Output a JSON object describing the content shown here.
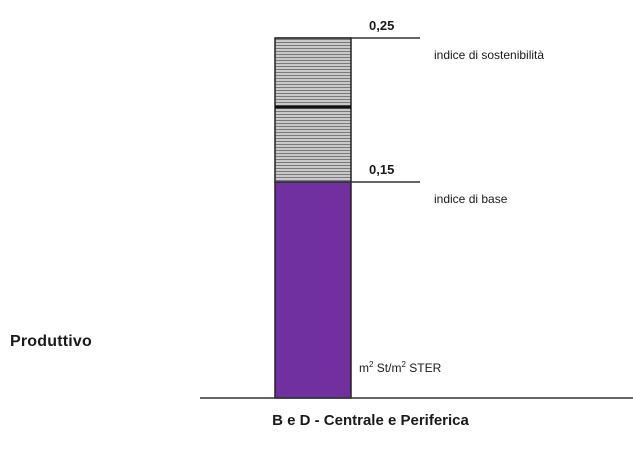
{
  "chart_data": {
    "type": "bar",
    "category": "Produttivo",
    "xlabel": "B e D - Centrale e Periferica",
    "unit_label_prefix": "m",
    "unit_label_mid": " St/m",
    "unit_label_suffix": " STER",
    "unit_sup": "2",
    "ylim": [
      0,
      0.25
    ],
    "segments": [
      {
        "from": 0,
        "to": 0.15,
        "color": "#7030a0",
        "pattern": "solid"
      },
      {
        "from": 0.15,
        "to": 0.25,
        "color": "#b8b8b8",
        "pattern": "horizontal-lines"
      }
    ],
    "thresholds": [
      {
        "value": 0.25,
        "value_label": "0,25",
        "name": "indice di sostenibilità"
      },
      {
        "value": 0.15,
        "value_label": "0,15",
        "name": "indice di base"
      }
    ]
  }
}
